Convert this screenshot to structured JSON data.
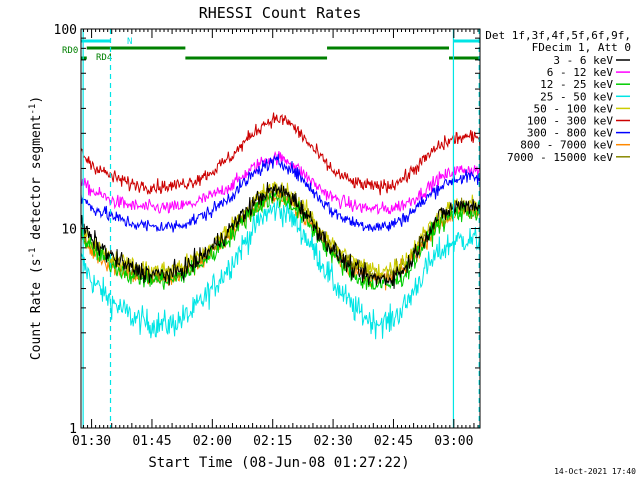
{
  "chart_data": {
    "type": "line",
    "title": "RHESSI Count Rates",
    "xlabel": "Start Time (08-Jun-08 01:27:22)",
    "ylabel_main": "Count Rate (s",
    "ylabel_sup1": "-1",
    "ylabel_mid": " detector segment",
    "ylabel_sup2": "-1",
    "ylabel_end": ")",
    "y_scale": "log",
    "ylim": [
      1,
      100
    ],
    "xlim": [
      "01:27:22",
      "03:06:30"
    ],
    "x_ticks": [
      "01:30",
      "01:45",
      "02:00",
      "02:15",
      "02:30",
      "02:45",
      "03:00"
    ],
    "x_tick_minutes": [
      90,
      105,
      120,
      135,
      150,
      165,
      180
    ],
    "x_range_minutes": [
      87.37,
      186.5
    ],
    "y_ticks": [
      {
        "label": "1",
        "value": 1
      },
      {
        "label": "10",
        "value": 10
      },
      {
        "label": "100",
        "value": 100
      }
    ],
    "timestamp": "14-Oct-2021 17:40",
    "legend_header": [
      "Det 1f,3f,4f,5f,6f,9f,",
      "FDecim 1, Att 0"
    ],
    "series": [
      {
        "name": "3 - 6 keV",
        "color": "#000000",
        "noise": 0.05,
        "points": [
          [
            87.4,
            10.5
          ],
          [
            90,
            8.8
          ],
          [
            95,
            7.2
          ],
          [
            100,
            6.3
          ],
          [
            105,
            5.9
          ],
          [
            110,
            5.9
          ],
          [
            115,
            6.6
          ],
          [
            120,
            8.0
          ],
          [
            125,
            10.2
          ],
          [
            130,
            13.3
          ],
          [
            133,
            15.0
          ],
          [
            136,
            15.6
          ],
          [
            139,
            14.8
          ],
          [
            142,
            12.8
          ],
          [
            146,
            10.0
          ],
          [
            150,
            7.8
          ],
          [
            155,
            6.2
          ],
          [
            160,
            5.6
          ],
          [
            164,
            5.6
          ],
          [
            168,
            6.3
          ],
          [
            172,
            8.6
          ],
          [
            176,
            11.3
          ],
          [
            180,
            12.8
          ],
          [
            183,
            13.2
          ],
          [
            186.5,
            13.0
          ]
        ]
      },
      {
        "name": "6 - 12 keV",
        "color": "#ff00ff",
        "noise": 0.035,
        "points": [
          [
            87.4,
            17.0
          ],
          [
            90,
            15.5
          ],
          [
            95,
            13.8
          ],
          [
            100,
            13.0
          ],
          [
            105,
            12.7
          ],
          [
            110,
            12.7
          ],
          [
            115,
            13.3
          ],
          [
            120,
            14.6
          ],
          [
            125,
            16.6
          ],
          [
            130,
            20.0
          ],
          [
            133,
            22.0
          ],
          [
            136,
            22.8
          ],
          [
            139,
            21.8
          ],
          [
            142,
            19.3
          ],
          [
            146,
            16.3
          ],
          [
            150,
            14.2
          ],
          [
            155,
            13.0
          ],
          [
            160,
            12.5
          ],
          [
            164,
            12.5
          ],
          [
            168,
            13.3
          ],
          [
            172,
            15.0
          ],
          [
            176,
            17.6
          ],
          [
            180,
            19.3
          ],
          [
            183,
            19.8
          ],
          [
            186.5,
            19.5
          ]
        ]
      },
      {
        "name": "12 - 25 keV",
        "color": "#00cc00",
        "noise": 0.05,
        "points": [
          [
            87.4,
            9.3
          ],
          [
            90,
            7.9
          ],
          [
            95,
            6.6
          ],
          [
            100,
            5.8
          ],
          [
            105,
            5.5
          ],
          [
            110,
            5.5
          ],
          [
            115,
            6.2
          ],
          [
            120,
            7.4
          ],
          [
            125,
            9.4
          ],
          [
            130,
            12.3
          ],
          [
            133,
            13.8
          ],
          [
            136,
            14.4
          ],
          [
            139,
            13.7
          ],
          [
            142,
            11.8
          ],
          [
            146,
            9.3
          ],
          [
            150,
            7.3
          ],
          [
            155,
            5.8
          ],
          [
            160,
            5.2
          ],
          [
            164,
            5.2
          ],
          [
            168,
            5.9
          ],
          [
            172,
            8.0
          ],
          [
            176,
            10.5
          ],
          [
            180,
            11.8
          ],
          [
            183,
            12.2
          ],
          [
            186.5,
            12.0
          ]
        ]
      },
      {
        "name": "25 - 50 keV",
        "color": "#00e5e5",
        "noise": 0.07,
        "points": [
          [
            87.4,
            7.0
          ],
          [
            90,
            5.5
          ],
          [
            95,
            4.3
          ],
          [
            100,
            3.6
          ],
          [
            105,
            3.3
          ],
          [
            110,
            3.3
          ],
          [
            115,
            3.8
          ],
          [
            120,
            5.0
          ],
          [
            125,
            6.8
          ],
          [
            130,
            9.8
          ],
          [
            133,
            11.8
          ],
          [
            136,
            12.6
          ],
          [
            139,
            11.8
          ],
          [
            142,
            9.9
          ],
          [
            146,
            7.4
          ],
          [
            150,
            5.4
          ],
          [
            155,
            4.0
          ],
          [
            160,
            3.4
          ],
          [
            164,
            3.4
          ],
          [
            168,
            4.1
          ],
          [
            172,
            5.8
          ],
          [
            176,
            7.5
          ],
          [
            180,
            8.6
          ],
          [
            183,
            8.9
          ],
          [
            186.5,
            8.6
          ]
        ]
      },
      {
        "name": "50 - 100 keV",
        "color": "#cccc00",
        "noise": 0.045,
        "points": [
          [
            87.4,
            10.0
          ],
          [
            90,
            8.5
          ],
          [
            95,
            7.2
          ],
          [
            100,
            6.5
          ],
          [
            105,
            6.2
          ],
          [
            110,
            6.2
          ],
          [
            115,
            6.9
          ],
          [
            120,
            8.2
          ],
          [
            125,
            10.4
          ],
          [
            130,
            13.6
          ],
          [
            133,
            15.4
          ],
          [
            136,
            16.0
          ],
          [
            139,
            15.2
          ],
          [
            142,
            13.2
          ],
          [
            146,
            10.5
          ],
          [
            150,
            8.3
          ],
          [
            155,
            6.8
          ],
          [
            160,
            6.2
          ],
          [
            164,
            6.2
          ],
          [
            168,
            7.0
          ],
          [
            172,
            9.0
          ],
          [
            176,
            11.5
          ],
          [
            180,
            12.9
          ],
          [
            183,
            13.3
          ],
          [
            186.5,
            13.1
          ]
        ]
      },
      {
        "name": "100 - 300 keV",
        "color": "#cc0000",
        "noise": 0.035,
        "points": [
          [
            87.4,
            24.0
          ],
          [
            90,
            21.0
          ],
          [
            95,
            18.2
          ],
          [
            100,
            16.7
          ],
          [
            105,
            16.2
          ],
          [
            110,
            16.3
          ],
          [
            115,
            17.2
          ],
          [
            120,
            19.3
          ],
          [
            125,
            23.3
          ],
          [
            130,
            29.8
          ],
          [
            133,
            33.8
          ],
          [
            136,
            35.6
          ],
          [
            139,
            34.2
          ],
          [
            142,
            29.6
          ],
          [
            146,
            23.8
          ],
          [
            150,
            19.4
          ],
          [
            155,
            17.0
          ],
          [
            160,
            16.2
          ],
          [
            164,
            16.4
          ],
          [
            168,
            18.0
          ],
          [
            172,
            21.5
          ],
          [
            176,
            25.6
          ],
          [
            180,
            28.2
          ],
          [
            183,
            28.8
          ],
          [
            186.5,
            28.2
          ]
        ]
      },
      {
        "name": "300 - 800 keV",
        "color": "#0000ff",
        "noise": 0.035,
        "points": [
          [
            87.4,
            14.2
          ],
          [
            90,
            12.8
          ],
          [
            95,
            11.5
          ],
          [
            100,
            10.6
          ],
          [
            105,
            10.2
          ],
          [
            110,
            10.2
          ],
          [
            115,
            10.9
          ],
          [
            120,
            12.3
          ],
          [
            125,
            14.8
          ],
          [
            130,
            18.5
          ],
          [
            133,
            20.7
          ],
          [
            136,
            21.6
          ],
          [
            139,
            20.6
          ],
          [
            142,
            18.0
          ],
          [
            146,
            14.6
          ],
          [
            150,
            12.1
          ],
          [
            155,
            10.7
          ],
          [
            160,
            10.2
          ],
          [
            164,
            10.3
          ],
          [
            168,
            11.4
          ],
          [
            172,
            13.4
          ],
          [
            176,
            16.0
          ],
          [
            180,
            17.6
          ],
          [
            183,
            18.1
          ],
          [
            186.5,
            17.8
          ]
        ]
      },
      {
        "name": "800 - 7000 keV",
        "color": "#ff8800",
        "noise": 0.045,
        "points": [
          [
            87.4,
            9.0
          ],
          [
            90,
            7.7
          ],
          [
            95,
            6.5
          ],
          [
            100,
            5.9
          ],
          [
            105,
            5.6
          ],
          [
            110,
            5.6
          ],
          [
            115,
            6.3
          ],
          [
            120,
            7.5
          ],
          [
            125,
            9.5
          ],
          [
            130,
            12.4
          ],
          [
            133,
            13.9
          ],
          [
            136,
            14.5
          ],
          [
            139,
            13.8
          ],
          [
            142,
            12.0
          ],
          [
            146,
            9.6
          ],
          [
            150,
            7.6
          ],
          [
            155,
            6.2
          ],
          [
            160,
            5.6
          ],
          [
            164,
            5.6
          ],
          [
            168,
            6.3
          ],
          [
            172,
            8.2
          ],
          [
            176,
            10.5
          ],
          [
            180,
            11.7
          ],
          [
            183,
            12.1
          ],
          [
            186.5,
            11.9
          ]
        ]
      },
      {
        "name": "7000 - 15000 keV",
        "color": "#888800",
        "noise": 0.04,
        "points": [
          [
            87.4,
            9.6
          ],
          [
            90,
            8.2
          ],
          [
            95,
            6.9
          ],
          [
            100,
            6.2
          ],
          [
            105,
            5.9
          ],
          [
            110,
            5.9
          ],
          [
            115,
            6.6
          ],
          [
            120,
            7.8
          ],
          [
            125,
            9.9
          ],
          [
            130,
            12.9
          ],
          [
            133,
            14.5
          ],
          [
            136,
            15.1
          ],
          [
            139,
            14.4
          ],
          [
            142,
            12.5
          ],
          [
            146,
            10.0
          ],
          [
            150,
            7.9
          ],
          [
            155,
            6.5
          ],
          [
            160,
            5.9
          ],
          [
            164,
            5.9
          ],
          [
            168,
            6.7
          ],
          [
            172,
            8.6
          ],
          [
            176,
            11.0
          ],
          [
            180,
            12.3
          ],
          [
            183,
            12.7
          ],
          [
            186.5,
            12.5
          ]
        ]
      }
    ],
    "night_markers": [
      {
        "type": "solid",
        "minute": 87.9
      },
      {
        "type": "dashed",
        "minute": 94.7
      },
      {
        "type": "solid",
        "minute": 179.9
      },
      {
        "type": "dashed",
        "minute": 186.3
      }
    ],
    "flag_bars": [
      {
        "label": "N",
        "color": "#00e5e5",
        "level": 0,
        "segments": [
          [
            87.4,
            94.7
          ],
          [
            179.9,
            186.5
          ]
        ]
      },
      {
        "label": "RD0",
        "color": "#008000",
        "level": 1,
        "segments": [
          [
            88.8,
            113.3
          ],
          [
            148.5,
            178.8
          ]
        ]
      },
      {
        "label": "RD4",
        "color": "#008000",
        "level": 2,
        "segments": [
          [
            87.4,
            88.8
          ],
          [
            113.3,
            148.5
          ],
          [
            178.8,
            186.5
          ]
        ]
      }
    ]
  }
}
